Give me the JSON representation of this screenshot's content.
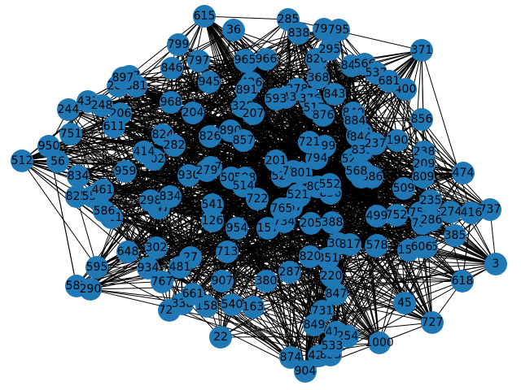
{
  "graph": {
    "type": "network",
    "node_color": "#1f77b4",
    "edge_color": "#000000",
    "label_color": "#000000",
    "background": "#ffffff",
    "nodes": [
      "615",
      "36",
      "285",
      "838",
      "798",
      "795",
      "799",
      "797",
      "371",
      "846",
      "897",
      "288",
      "881",
      "431",
      "244",
      "248",
      "206",
      "611",
      "751",
      "950",
      "512",
      "56",
      "834",
      "825",
      "559",
      "461",
      "411",
      "586",
      "595",
      "583",
      "290",
      "648",
      "302",
      "934",
      "767",
      "724",
      "338",
      "158",
      "540",
      "163",
      "22",
      "27",
      "481",
      "661",
      "713",
      "907",
      "874",
      "904",
      "424",
      "853",
      "1000",
      "727",
      "45",
      "3",
      "618",
      "737",
      "474",
      "238",
      "209",
      "190",
      "856",
      "400",
      "368",
      "848",
      "820",
      "295",
      "566",
      "537",
      "681",
      "378",
      "343",
      "376",
      "593",
      "517",
      "426",
      "891",
      "328",
      "207",
      "597",
      "966",
      "965",
      "945",
      "968",
      "204",
      "824",
      "282",
      "802",
      "414",
      "959",
      "930",
      "577",
      "826",
      "890",
      "857",
      "508",
      "588",
      "514",
      "447",
      "298",
      "834",
      "722",
      "541",
      "126",
      "954",
      "157",
      "734",
      "667",
      "621",
      "765",
      "522",
      "205",
      "388",
      "308",
      "817",
      "578",
      "351",
      "820",
      "220",
      "847",
      "731",
      "849",
      "413",
      "254",
      "533",
      "806",
      "759",
      "755",
      "287",
      "380",
      "279",
      "201",
      "299",
      "794",
      "521",
      "841",
      "840",
      "884",
      "683",
      "808",
      "836",
      "552",
      "529",
      "809",
      "509",
      "752",
      "499",
      "158",
      "606",
      "286",
      "235",
      "274",
      "416",
      "385",
      "578",
      "897",
      "843",
      "876",
      "721",
      "844",
      "833",
      "631",
      "652",
      "686",
      "568",
      "237",
      "781",
      "801",
      "380"
    ],
    "edge_count_note": ""
  }
}
